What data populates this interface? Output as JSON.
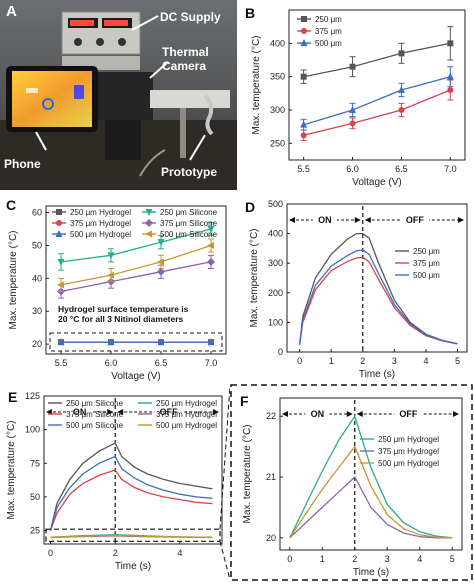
{
  "photo": {
    "letter": "A",
    "callouts": {
      "dc_supply": "DC Supply",
      "thermal_camera": "Thermal\nCamera",
      "phone": "Phone",
      "prototype": "Prototype"
    }
  },
  "colors": {
    "c250": "#555555",
    "c375": "#d9434d",
    "c500": "#3a6fc4",
    "hyd250": "#555555",
    "hyd375": "#d9434d",
    "hyd500": "#3a6fc4",
    "sil250": "#27ae8a",
    "sil375": "#8a63b0",
    "sil500": "#c9952c"
  },
  "chart_data": [
    {
      "id": "B",
      "letter": "B",
      "type": "line",
      "xlabel": "Voltage (V)",
      "ylabel": "Max. temperature (°C)",
      "xlim": [
        5.35,
        7.15
      ],
      "ylim": [
        225,
        450
      ],
      "xticks": [
        5.5,
        6.0,
        6.5,
        7.0
      ],
      "xticklabels": [
        "5.5",
        "6.0",
        "6.5",
        "7.0"
      ],
      "yticks": [
        250,
        300,
        350,
        400
      ],
      "legend_position": "top-left",
      "series": [
        {
          "name": "250 μm",
          "colorKey": "c250",
          "marker": "square",
          "x": [
            5.5,
            6.0,
            6.5,
            7.0
          ],
          "y": [
            350,
            365,
            385,
            400
          ],
          "err": [
            10,
            15,
            15,
            25
          ]
        },
        {
          "name": "375 μm",
          "colorKey": "c375",
          "marker": "circle",
          "x": [
            5.5,
            6.0,
            6.5,
            7.0
          ],
          "y": [
            262,
            280,
            300,
            330
          ],
          "err": [
            8,
            8,
            10,
            15
          ]
        },
        {
          "name": "500 μm",
          "colorKey": "c500",
          "marker": "triangle",
          "x": [
            5.5,
            6.0,
            6.5,
            7.0
          ],
          "y": [
            278,
            300,
            330,
            350
          ],
          "err": [
            8,
            10,
            10,
            15
          ]
        }
      ]
    },
    {
      "id": "C",
      "letter": "C",
      "type": "line",
      "xlabel": "Voltage (V)",
      "ylabel": "Max. temperature (°C)",
      "xlim": [
        5.35,
        7.15
      ],
      "ylim": [
        17,
        62
      ],
      "xticks": [
        5.5,
        6.0,
        6.5,
        7.0
      ],
      "xticklabels": [
        "5.5",
        "6.0",
        "6.5",
        "7.0"
      ],
      "yticks": [
        20,
        30,
        40,
        50,
        60
      ],
      "legend_position": "top",
      "annotation": "Hydrogel surface temperature is\n20 °C for all 3 Nitinol diameters",
      "series": [
        {
          "name": "250 μm Hydrogel",
          "colorKey": "hyd250",
          "marker": "square",
          "x": [
            5.5,
            6.0,
            6.5,
            7.0
          ],
          "y": [
            20.6,
            20.6,
            20.6,
            20.6
          ],
          "err": [
            0.4,
            0.4,
            0.4,
            0.4
          ]
        },
        {
          "name": "375 μm Hydrogel",
          "colorKey": "hyd375",
          "marker": "circle",
          "x": [
            5.5,
            6.0,
            6.5,
            7.0
          ],
          "y": [
            20.6,
            20.6,
            20.6,
            20.6
          ],
          "err": [
            0.4,
            0.4,
            0.4,
            0.4
          ]
        },
        {
          "name": "500 μm Hydrogel",
          "colorKey": "hyd500",
          "marker": "triangle",
          "x": [
            5.5,
            6.0,
            6.5,
            7.0
          ],
          "y": [
            20.6,
            20.6,
            20.6,
            20.6
          ],
          "err": [
            0.4,
            0.4,
            0.4,
            0.4
          ]
        },
        {
          "name": "250 μm Silicone",
          "colorKey": "sil250",
          "marker": "triangle-down",
          "x": [
            5.5,
            6.0,
            6.5,
            7.0
          ],
          "y": [
            45,
            47,
            51,
            55
          ],
          "err": [
            2.5,
            2,
            2,
            2
          ]
        },
        {
          "name": "375 μm Silicone",
          "colorKey": "sil375",
          "marker": "diamond",
          "x": [
            5.5,
            6.0,
            6.5,
            7.0
          ],
          "y": [
            36,
            39,
            42,
            45
          ],
          "err": [
            2,
            2,
            2,
            2
          ]
        },
        {
          "name": "500 μm Silicone",
          "colorKey": "sil500",
          "marker": "triangle-left",
          "x": [
            5.5,
            6.0,
            6.5,
            7.0
          ],
          "y": [
            38,
            41,
            45,
            50
          ],
          "err": [
            2,
            2,
            2,
            2
          ]
        }
      ]
    },
    {
      "id": "D",
      "letter": "D",
      "type": "line",
      "xlabel": "Time (s)",
      "ylabel": "Max. temperature (°C)",
      "xlim": [
        -0.4,
        5.3
      ],
      "ylim": [
        0,
        500
      ],
      "xticks": [
        0,
        1,
        2,
        3,
        4,
        5
      ],
      "xticklabels": [
        "0",
        "1",
        "2",
        "3",
        "4",
        "5"
      ],
      "yticks": [
        0,
        100,
        200,
        300,
        400,
        500
      ],
      "legend_position": "right",
      "on_label": "ON",
      "off_label": "OFF",
      "switch_time": 2,
      "series": [
        {
          "name": "250 μm",
          "colorKey": "c250",
          "x": [
            0,
            0.1,
            0.5,
            1,
            1.5,
            1.8,
            2,
            2.2,
            2.5,
            3,
            3.5,
            4,
            4.5,
            5
          ],
          "y": [
            25,
            120,
            250,
            330,
            380,
            400,
            400,
            385,
            300,
            175,
            100,
            60,
            40,
            28
          ]
        },
        {
          "name": "375 μm",
          "colorKey": "c375",
          "x": [
            0,
            0.1,
            0.5,
            1,
            1.5,
            1.8,
            2,
            2.2,
            2.5,
            3,
            3.5,
            4,
            4.5,
            5
          ],
          "y": [
            25,
            100,
            210,
            275,
            305,
            318,
            320,
            305,
            245,
            150,
            90,
            55,
            38,
            27
          ]
        },
        {
          "name": "500 μm",
          "colorKey": "c500",
          "x": [
            0,
            0.1,
            0.5,
            1,
            1.5,
            1.8,
            2,
            2.2,
            2.5,
            3,
            3.5,
            4,
            4.5,
            5
          ],
          "y": [
            25,
            108,
            225,
            290,
            325,
            342,
            345,
            330,
            265,
            160,
            95,
            58,
            40,
            28
          ]
        }
      ]
    },
    {
      "id": "E",
      "letter": "E",
      "type": "line",
      "xlabel": "Time (s)",
      "ylabel": "Max. temperature (°C)",
      "xlim": [
        -0.2,
        5.3
      ],
      "ylim": [
        15,
        125
      ],
      "xticks": [
        0,
        2,
        4
      ],
      "xticklabels": [
        "0",
        "2",
        "4"
      ],
      "yticks": [
        25,
        50,
        75,
        100,
        125
      ],
      "legend_position": "top",
      "on_label": "ON",
      "off_label": "OFF",
      "switch_time": 2,
      "series": [
        {
          "name": "250 μm Silicone",
          "colorKey": "c250",
          "x": [
            0,
            0.2,
            0.6,
            1,
            1.5,
            2,
            2.2,
            2.6,
            3,
            3.5,
            4,
            4.5,
            5
          ],
          "y": [
            25,
            45,
            63,
            75,
            84,
            90,
            80,
            72,
            67,
            63,
            60,
            58,
            56
          ]
        },
        {
          "name": "375 μm Silicone",
          "colorKey": "c375",
          "x": [
            0,
            0.2,
            0.6,
            1,
            1.5,
            2,
            2.2,
            2.6,
            3,
            3.5,
            4,
            4.5,
            5
          ],
          "y": [
            25,
            38,
            52,
            60,
            66,
            70,
            63,
            57,
            53,
            50,
            48,
            46,
            45
          ]
        },
        {
          "name": "500 μm Silicone",
          "colorKey": "c500",
          "x": [
            0,
            0.2,
            0.6,
            1,
            1.5,
            2,
            2.2,
            2.6,
            3,
            3.5,
            4,
            4.5,
            5
          ],
          "y": [
            25,
            42,
            57,
            67,
            75,
            80,
            71,
            64,
            59,
            55,
            52,
            50,
            49
          ]
        },
        {
          "name": "250 μm Hydrogel",
          "colorKey": "sil250",
          "x": [
            0,
            1,
            2,
            3,
            4,
            5
          ],
          "y": [
            20,
            21.2,
            22,
            21,
            20.3,
            20
          ]
        },
        {
          "name": "375 μm Hydrogel",
          "colorKey": "sil375",
          "x": [
            0,
            1,
            2,
            3,
            4,
            5
          ],
          "y": [
            20,
            20.5,
            21,
            20.4,
            20.1,
            20
          ]
        },
        {
          "name": "500 μm Hydrogel",
          "colorKey": "sil500",
          "x": [
            0,
            1,
            2,
            3,
            4,
            5
          ],
          "y": [
            20,
            20.8,
            21.5,
            20.7,
            20.2,
            20
          ]
        }
      ]
    },
    {
      "id": "F",
      "letter": "F",
      "type": "line",
      "xlabel": "Time (s)",
      "ylabel": "Max. temperature (°C)",
      "xlim": [
        -0.3,
        5.3
      ],
      "ylim": [
        19.8,
        22.3
      ],
      "xticks": [
        0,
        1,
        2,
        3,
        4,
        5
      ],
      "xticklabels": [
        "0",
        "1",
        "2",
        "3",
        "4",
        "5"
      ],
      "yticks": [
        20,
        21,
        22
      ],
      "legend_position": "right",
      "on_label": "ON",
      "off_label": "OFF",
      "switch_time": 2,
      "series": [
        {
          "name": "250 μm Hydrogel",
          "colorKey": "sil250",
          "x": [
            0,
            0.5,
            1,
            1.5,
            2,
            2.5,
            3,
            3.5,
            4,
            4.5,
            5
          ],
          "y": [
            20,
            20.55,
            21.1,
            21.6,
            22,
            21.15,
            20.55,
            20.25,
            20.1,
            20.03,
            20
          ]
        },
        {
          "name": "375 μm Hydrogel",
          "colorKey": "sil375",
          "x": [
            0,
            0.5,
            1,
            1.5,
            2,
            2.5,
            3,
            3.5,
            4,
            4.5,
            5
          ],
          "y": [
            20,
            20.25,
            20.5,
            20.75,
            21,
            20.5,
            20.22,
            20.08,
            20.02,
            20,
            20
          ]
        },
        {
          "name": "500 μm Hydrogel",
          "colorKey": "sil500",
          "x": [
            0,
            0.5,
            1,
            1.5,
            2,
            2.5,
            3,
            3.5,
            4,
            4.5,
            5
          ],
          "y": [
            20,
            20.4,
            20.8,
            21.15,
            21.5,
            20.85,
            20.38,
            20.15,
            20.05,
            20.01,
            20
          ]
        }
      ]
    }
  ]
}
